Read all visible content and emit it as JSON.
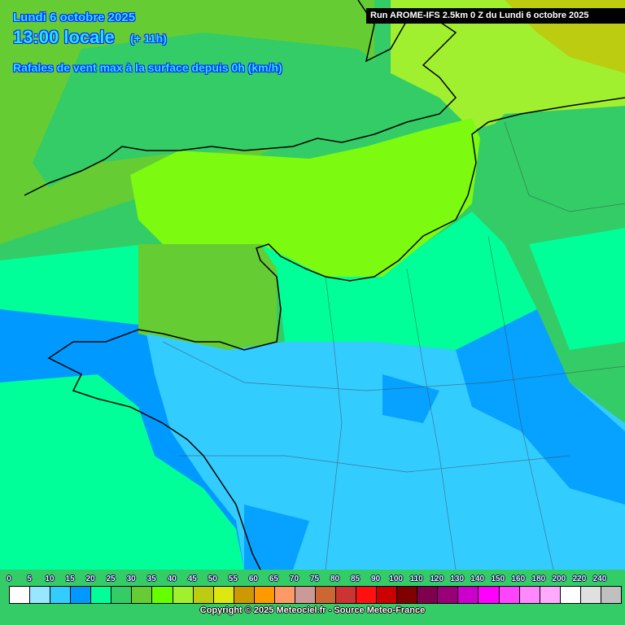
{
  "header": {
    "date": "Lundi 6 octobre 2025",
    "local_time": "13:00 locale",
    "lead_time": "(+ 11h)",
    "parameter": "Rafales de vent max à la surface depuis 0h (km/h)",
    "run": "Run AROME-IFS 2.5km 0 Z du Lundi 6 octobre 2025"
  },
  "legend": {
    "labels": [
      "0",
      "5",
      "10",
      "15",
      "20",
      "25",
      "30",
      "35",
      "40",
      "45",
      "50",
      "55",
      "60",
      "65",
      "70",
      "75",
      "80",
      "85",
      "90",
      "100",
      "110",
      "120",
      "130",
      "140",
      "150",
      "160",
      "180",
      "200",
      "220",
      "240"
    ],
    "colors": [
      "#ffffff",
      "#99e6ff",
      "#33ccff",
      "#0099ff",
      "#00ff99",
      "#33cc66",
      "#66cc33",
      "#66ff00",
      "#a0f030",
      "#bbcc11",
      "#dde811",
      "#cc9900",
      "#ff9900",
      "#ff9966",
      "#cc9999",
      "#cc6633",
      "#cc3333",
      "#ff1111",
      "#cc0000",
      "#800000",
      "#800050",
      "#990077",
      "#cc00cc",
      "#ff00ff",
      "#ff44ff",
      "#ff88ff",
      "#ffaaff",
      "#ffffff",
      "#e0e0e0",
      "#c0c0c0"
    ]
  },
  "copyright": "Copyright © 2025 Meteociel.fr - Source Meteo-France"
}
